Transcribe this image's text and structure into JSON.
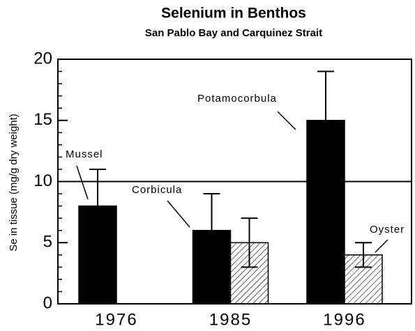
{
  "chart_data": {
    "type": "bar",
    "title": "Selenium in Benthos",
    "subtitle": "San Pablo Bay and Carquinez Strait",
    "y_label": "Se in tissue (mg/g dry weight)",
    "categories": [
      "1976",
      "1985",
      "1996"
    ],
    "series": [
      {
        "color": "#000000",
        "pattern": "solid",
        "values": [
          8,
          6,
          15
        ],
        "errors": [
          3,
          3,
          4
        ]
      },
      {
        "color": "#000000",
        "pattern": "hatch",
        "values": [
          null,
          5,
          4
        ],
        "errors": [
          null,
          2,
          1
        ]
      }
    ],
    "annotations": [
      "Mussel",
      "Corbicula",
      "Potamocorbula",
      "Oyster"
    ],
    "reference_line": 10,
    "ylim": [
      0,
      20
    ],
    "yticks": [
      0,
      5,
      10,
      15,
      20
    ],
    "yminor_step": 1
  }
}
